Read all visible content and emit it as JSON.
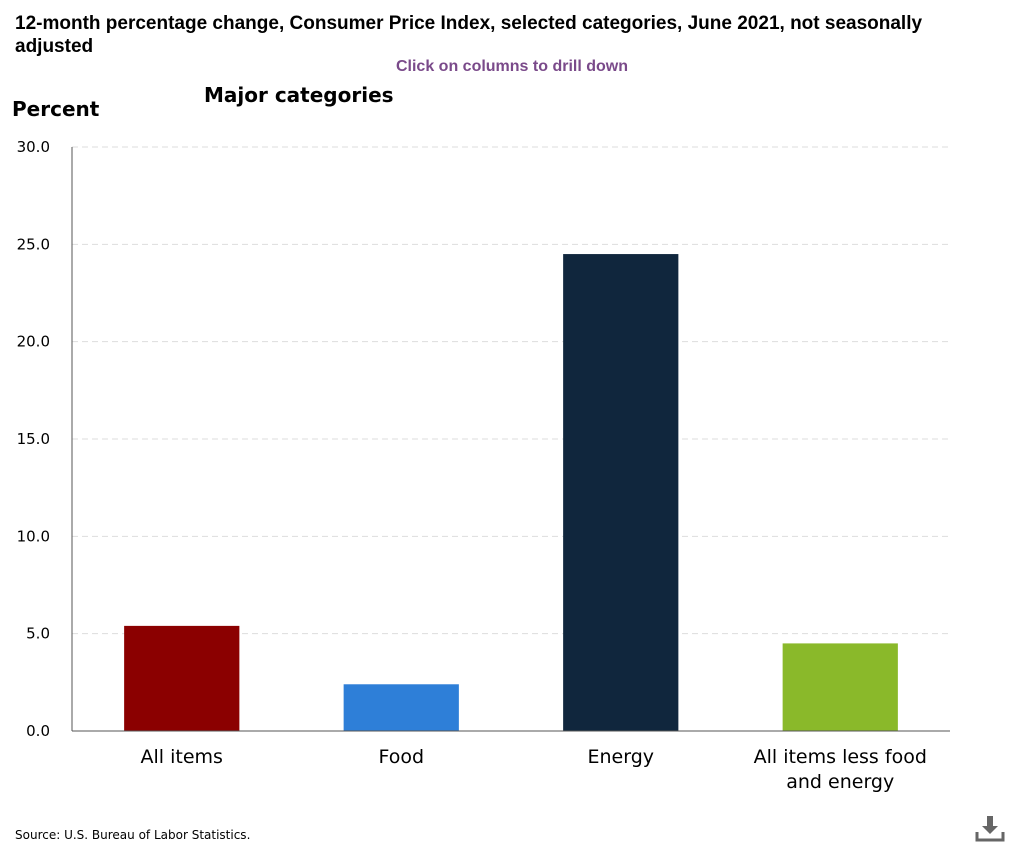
{
  "header": {
    "title": "12-month percentage change, Consumer Price Index, selected categories, June 2021, not seasonally adjusted",
    "hint": "Click on columns to drill down"
  },
  "footer": {
    "source": "Source: U.S. Bureau of Labor Statistics."
  },
  "icons": {
    "download": "download-icon"
  },
  "chart_data": {
    "type": "bar",
    "title": "Major categories",
    "ylabel": "Percent",
    "xlabel": "",
    "ylim": [
      0,
      30
    ],
    "yticks": [
      "0.0",
      "5.0",
      "10.0",
      "15.0",
      "20.0",
      "25.0",
      "30.0"
    ],
    "categories": [
      "All items",
      "Food",
      "Energy",
      "All items less food and energy"
    ],
    "category_lines": [
      [
        "All items"
      ],
      [
        "Food"
      ],
      [
        "Energy"
      ],
      [
        "All items less food",
        "and energy"
      ]
    ],
    "values": [
      5.4,
      2.4,
      24.5,
      4.5
    ],
    "colors": [
      "#8b0000",
      "#2e7fd8",
      "#10263d",
      "#8ab92a"
    ],
    "grid": true,
    "legend": "none"
  }
}
